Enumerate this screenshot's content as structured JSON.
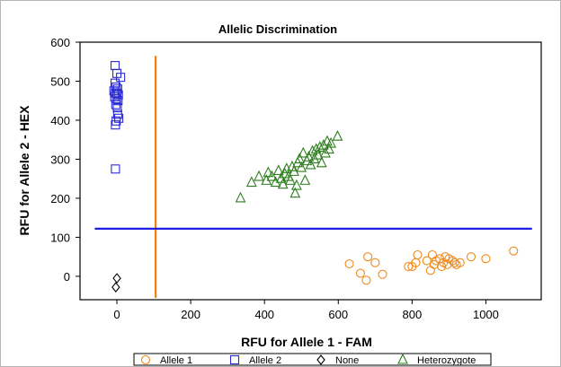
{
  "chart_data": {
    "type": "scatter",
    "title": "Allelic Discrimination",
    "xlabel": "RFU for Allele 1 - FAM",
    "ylabel": "RFU for Allele 2 - HEX",
    "xlim": [
      -100,
      1150
    ],
    "ylim": [
      -60,
      600
    ],
    "xticks": [
      0,
      200,
      400,
      600,
      800,
      1000
    ],
    "yticks": [
      0,
      100,
      200,
      300,
      400,
      500,
      600
    ],
    "grid": false,
    "legend_position": "bottom",
    "threshold_lines": [
      {
        "orientation": "vertical",
        "x": 105,
        "y_range": [
          -55,
          565
        ],
        "color": "#f07f0e"
      },
      {
        "orientation": "horizontal",
        "y": 122,
        "x_range": [
          -60,
          1125
        ],
        "color": "#1f1fe0"
      }
    ],
    "series": [
      {
        "name": "Allele 1",
        "marker": "circle",
        "color": "#f08a1a",
        "points": [
          [
            630,
            32
          ],
          [
            660,
            8
          ],
          [
            676,
            -10
          ],
          [
            680,
            50
          ],
          [
            700,
            35
          ],
          [
            720,
            5
          ],
          [
            790,
            25
          ],
          [
            800,
            25
          ],
          [
            810,
            35
          ],
          [
            815,
            55
          ],
          [
            840,
            40
          ],
          [
            850,
            15
          ],
          [
            855,
            55
          ],
          [
            860,
            30
          ],
          [
            865,
            40
          ],
          [
            875,
            45
          ],
          [
            880,
            25
          ],
          [
            885,
            35
          ],
          [
            890,
            50
          ],
          [
            895,
            30
          ],
          [
            900,
            45
          ],
          [
            910,
            40
          ],
          [
            915,
            35
          ],
          [
            920,
            30
          ],
          [
            930,
            35
          ],
          [
            960,
            50
          ],
          [
            1000,
            45
          ],
          [
            1075,
            65
          ]
        ]
      },
      {
        "name": "Allele 2",
        "marker": "square",
        "color": "#2a2ad6",
        "points": [
          [
            -5,
            540
          ],
          [
            0,
            520
          ],
          [
            10,
            510
          ],
          [
            -5,
            495
          ],
          [
            -2,
            485
          ],
          [
            2,
            480
          ],
          [
            -8,
            475
          ],
          [
            -4,
            470
          ],
          [
            0,
            468
          ],
          [
            4,
            465
          ],
          [
            -6,
            460
          ],
          [
            -1,
            455
          ],
          [
            3,
            450
          ],
          [
            -3,
            440
          ],
          [
            1,
            432
          ],
          [
            2,
            415
          ],
          [
            5,
            405
          ],
          [
            -2,
            398
          ],
          [
            -4,
            388
          ],
          [
            -4,
            275
          ]
        ]
      },
      {
        "name": "None",
        "marker": "diamond",
        "color": "#000000",
        "points": [
          [
            0,
            -5
          ],
          [
            -3,
            -28
          ]
        ]
      },
      {
        "name": "Heterozygote",
        "marker": "triangle",
        "color": "#2e7d1f",
        "points": [
          [
            335,
            200
          ],
          [
            365,
            240
          ],
          [
            385,
            255
          ],
          [
            405,
            245
          ],
          [
            410,
            265
          ],
          [
            420,
            255
          ],
          [
            430,
            240
          ],
          [
            438,
            270
          ],
          [
            445,
            250
          ],
          [
            450,
            235
          ],
          [
            455,
            262
          ],
          [
            460,
            275
          ],
          [
            465,
            255
          ],
          [
            470,
            245
          ],
          [
            475,
            280
          ],
          [
            480,
            268
          ],
          [
            483,
            212
          ],
          [
            487,
            232
          ],
          [
            490,
            290
          ],
          [
            495,
            300
          ],
          [
            500,
            278
          ],
          [
            505,
            315
          ],
          [
            510,
            245
          ],
          [
            515,
            295
          ],
          [
            520,
            305
          ],
          [
            525,
            285
          ],
          [
            530,
            320
          ],
          [
            535,
            300
          ],
          [
            540,
            325
          ],
          [
            545,
            310
          ],
          [
            550,
            330
          ],
          [
            555,
            290
          ],
          [
            560,
            335
          ],
          [
            565,
            315
          ],
          [
            570,
            345
          ],
          [
            575,
            325
          ],
          [
            580,
            340
          ],
          [
            598,
            358
          ]
        ]
      }
    ]
  }
}
